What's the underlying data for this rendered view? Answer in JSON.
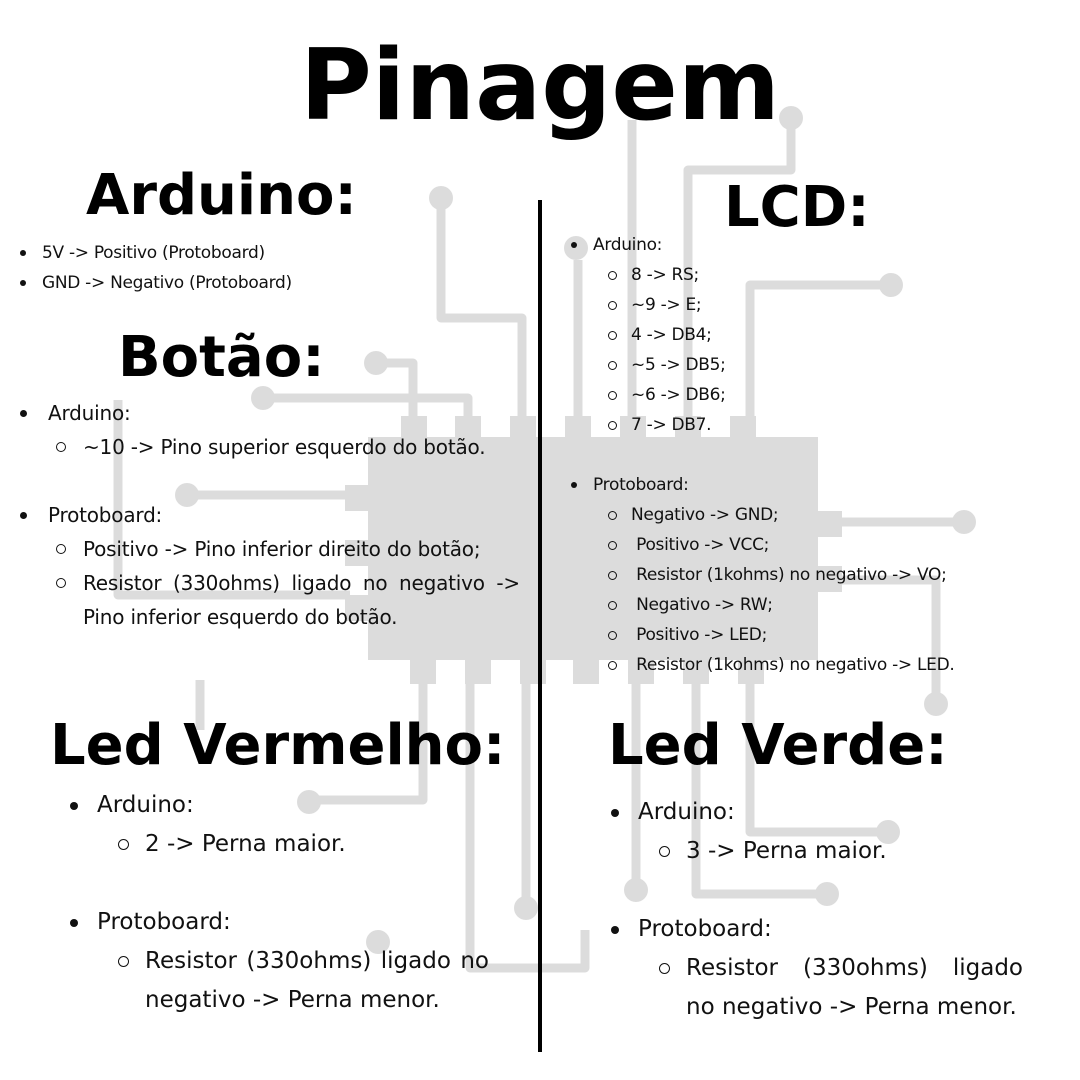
{
  "page_title": "Pinagem",
  "arduino": {
    "title": "Arduino:",
    "items": [
      "5V -> Positivo (Protoboard)",
      "GND -> Negativo (Protoboard)"
    ]
  },
  "botao": {
    "title": "Botão:",
    "groups": [
      {
        "label": "Arduino:",
        "items": [
          "~10 -> Pino superior esquerdo do botão."
        ]
      },
      {
        "label": "Protoboard:",
        "items": [
          "Positivo -> Pino inferior direito do botão;",
          "Resistor (330ohms) ligado no negativo -> Pino inferior esquerdo do botão."
        ]
      }
    ]
  },
  "lcd": {
    "title": "LCD:",
    "groups": [
      {
        "label": "Arduino:",
        "items": [
          "8 -> RS;",
          "~9 -> E;",
          "4 -> DB4;",
          "~5 -> DB5;",
          "~6 -> DB6;",
          "7 -> DB7."
        ]
      },
      {
        "label": "Protoboard:",
        "items": [
          "Negativo -> GND;",
          " Positivo -> VCC;",
          " Resistor (1kohms) no negativo -> VO;",
          " Negativo -> RW;",
          " Positivo -> LED;",
          " Resistor (1kohms) no negativo -> LED."
        ]
      }
    ]
  },
  "led_vermelho": {
    "title": "Led Vermelho:",
    "groups": [
      {
        "label": "Arduino:",
        "items": [
          "2 -> Perna maior."
        ]
      },
      {
        "label": "Protoboard:",
        "items": [
          "Resistor (330ohms) ligado no negativo -> Perna menor."
        ]
      }
    ]
  },
  "led_verde": {
    "title": "Led Verde:",
    "groups": [
      {
        "label": "Arduino:",
        "items": [
          "3 -> Perna maior."
        ]
      },
      {
        "label": "Protoboard:",
        "items": [
          "Resistor (330ohms) ligado no negativo -> Perna menor."
        ]
      }
    ]
  },
  "colors": {
    "circuit": "#dcdcdc",
    "text": "#111111",
    "divider": "#000000"
  }
}
